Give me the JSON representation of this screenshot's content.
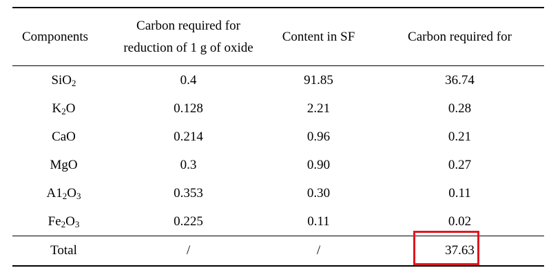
{
  "table": {
    "headers": {
      "components": "Components",
      "carbon_per_oxide_line1": "Carbon required for",
      "carbon_per_oxide_line2": "reduction of 1 g of oxide",
      "content_in_sf": "Content in SF",
      "carbon_required": "Carbon required for"
    },
    "rows": [
      {
        "component_main": "SiO",
        "component_sub": "2",
        "component_tail": "",
        "carbon_per_g": "0.4",
        "content": "91.85",
        "carbon_required": "36.74"
      },
      {
        "component_main": "K",
        "component_sub": "2",
        "component_tail": "O",
        "carbon_per_g": "0.128",
        "content": "2.21",
        "carbon_required": "0.28"
      },
      {
        "component_main": "CaO",
        "component_sub": "",
        "component_tail": "",
        "carbon_per_g": "0.214",
        "content": "0.96",
        "carbon_required": "0.21"
      },
      {
        "component_main": "MgO",
        "component_sub": "",
        "component_tail": "",
        "carbon_per_g": "0.3",
        "content": "0.90",
        "carbon_required": "0.27"
      },
      {
        "component_main": "A1",
        "component_sub": "2",
        "component_tail": "O",
        "component_sub2": "3",
        "carbon_per_g": "0.353",
        "content": "0.30",
        "carbon_required": "0.11"
      },
      {
        "component_main": "Fe",
        "component_sub": "2",
        "component_tail": "O",
        "component_sub2": "3",
        "carbon_per_g": "0.225",
        "content": "0.11",
        "carbon_required": "0.02"
      }
    ],
    "total": {
      "label": "Total",
      "carbon_per_g": "/",
      "content": "/",
      "carbon_required": "37.63"
    },
    "highlight_color": "#e0161d"
  }
}
